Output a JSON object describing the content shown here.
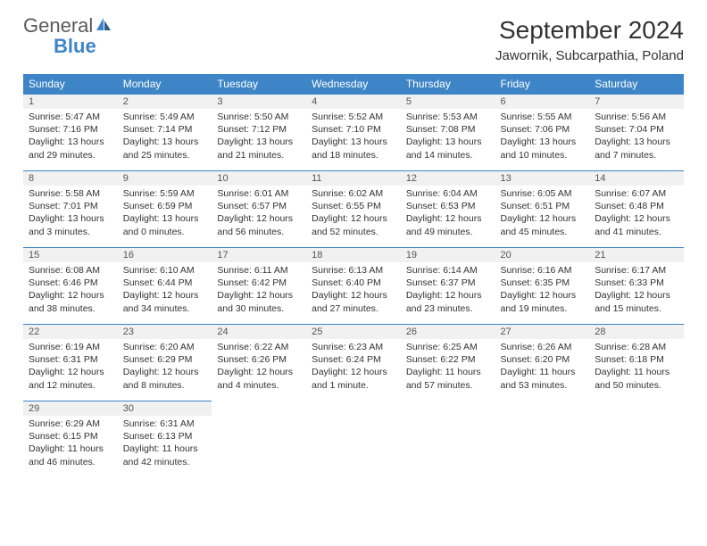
{
  "brand": {
    "name_gray": "General",
    "name_blue": "Blue"
  },
  "title": "September 2024",
  "location": "Jawornik, Subcarpathia, Poland",
  "colors": {
    "header_bg": "#3d85c6",
    "header_text": "#ffffff",
    "daynum_bg": "#f1f1f1",
    "cell_border": "#3d85c6",
    "body_text": "#333333",
    "logo_gray": "#5a5a5a",
    "logo_blue": "#3d85c6",
    "page_bg": "#ffffff"
  },
  "weekdays": [
    "Sunday",
    "Monday",
    "Tuesday",
    "Wednesday",
    "Thursday",
    "Friday",
    "Saturday"
  ],
  "layout": {
    "columns": 7,
    "rows": 5,
    "start_weekday_index": 0
  },
  "days": [
    {
      "n": 1,
      "sunrise": "5:47 AM",
      "sunset": "7:16 PM",
      "daylight": "13 hours and 29 minutes."
    },
    {
      "n": 2,
      "sunrise": "5:49 AM",
      "sunset": "7:14 PM",
      "daylight": "13 hours and 25 minutes."
    },
    {
      "n": 3,
      "sunrise": "5:50 AM",
      "sunset": "7:12 PM",
      "daylight": "13 hours and 21 minutes."
    },
    {
      "n": 4,
      "sunrise": "5:52 AM",
      "sunset": "7:10 PM",
      "daylight": "13 hours and 18 minutes."
    },
    {
      "n": 5,
      "sunrise": "5:53 AM",
      "sunset": "7:08 PM",
      "daylight": "13 hours and 14 minutes."
    },
    {
      "n": 6,
      "sunrise": "5:55 AM",
      "sunset": "7:06 PM",
      "daylight": "13 hours and 10 minutes."
    },
    {
      "n": 7,
      "sunrise": "5:56 AM",
      "sunset": "7:04 PM",
      "daylight": "13 hours and 7 minutes."
    },
    {
      "n": 8,
      "sunrise": "5:58 AM",
      "sunset": "7:01 PM",
      "daylight": "13 hours and 3 minutes."
    },
    {
      "n": 9,
      "sunrise": "5:59 AM",
      "sunset": "6:59 PM",
      "daylight": "13 hours and 0 minutes."
    },
    {
      "n": 10,
      "sunrise": "6:01 AM",
      "sunset": "6:57 PM",
      "daylight": "12 hours and 56 minutes."
    },
    {
      "n": 11,
      "sunrise": "6:02 AM",
      "sunset": "6:55 PM",
      "daylight": "12 hours and 52 minutes."
    },
    {
      "n": 12,
      "sunrise": "6:04 AM",
      "sunset": "6:53 PM",
      "daylight": "12 hours and 49 minutes."
    },
    {
      "n": 13,
      "sunrise": "6:05 AM",
      "sunset": "6:51 PM",
      "daylight": "12 hours and 45 minutes."
    },
    {
      "n": 14,
      "sunrise": "6:07 AM",
      "sunset": "6:48 PM",
      "daylight": "12 hours and 41 minutes."
    },
    {
      "n": 15,
      "sunrise": "6:08 AM",
      "sunset": "6:46 PM",
      "daylight": "12 hours and 38 minutes."
    },
    {
      "n": 16,
      "sunrise": "6:10 AM",
      "sunset": "6:44 PM",
      "daylight": "12 hours and 34 minutes."
    },
    {
      "n": 17,
      "sunrise": "6:11 AM",
      "sunset": "6:42 PM",
      "daylight": "12 hours and 30 minutes."
    },
    {
      "n": 18,
      "sunrise": "6:13 AM",
      "sunset": "6:40 PM",
      "daylight": "12 hours and 27 minutes."
    },
    {
      "n": 19,
      "sunrise": "6:14 AM",
      "sunset": "6:37 PM",
      "daylight": "12 hours and 23 minutes."
    },
    {
      "n": 20,
      "sunrise": "6:16 AM",
      "sunset": "6:35 PM",
      "daylight": "12 hours and 19 minutes."
    },
    {
      "n": 21,
      "sunrise": "6:17 AM",
      "sunset": "6:33 PM",
      "daylight": "12 hours and 15 minutes."
    },
    {
      "n": 22,
      "sunrise": "6:19 AM",
      "sunset": "6:31 PM",
      "daylight": "12 hours and 12 minutes."
    },
    {
      "n": 23,
      "sunrise": "6:20 AM",
      "sunset": "6:29 PM",
      "daylight": "12 hours and 8 minutes."
    },
    {
      "n": 24,
      "sunrise": "6:22 AM",
      "sunset": "6:26 PM",
      "daylight": "12 hours and 4 minutes."
    },
    {
      "n": 25,
      "sunrise": "6:23 AM",
      "sunset": "6:24 PM",
      "daylight": "12 hours and 1 minute."
    },
    {
      "n": 26,
      "sunrise": "6:25 AM",
      "sunset": "6:22 PM",
      "daylight": "11 hours and 57 minutes."
    },
    {
      "n": 27,
      "sunrise": "6:26 AM",
      "sunset": "6:20 PM",
      "daylight": "11 hours and 53 minutes."
    },
    {
      "n": 28,
      "sunrise": "6:28 AM",
      "sunset": "6:18 PM",
      "daylight": "11 hours and 50 minutes."
    },
    {
      "n": 29,
      "sunrise": "6:29 AM",
      "sunset": "6:15 PM",
      "daylight": "11 hours and 46 minutes."
    },
    {
      "n": 30,
      "sunrise": "6:31 AM",
      "sunset": "6:13 PM",
      "daylight": "11 hours and 42 minutes."
    }
  ],
  "labels": {
    "sunrise": "Sunrise:",
    "sunset": "Sunset:",
    "daylight": "Daylight:"
  },
  "typography": {
    "title_fontsize": 28,
    "location_fontsize": 15,
    "header_fontsize": 12,
    "daynum_fontsize": 11,
    "body_fontsize": 10.5
  }
}
